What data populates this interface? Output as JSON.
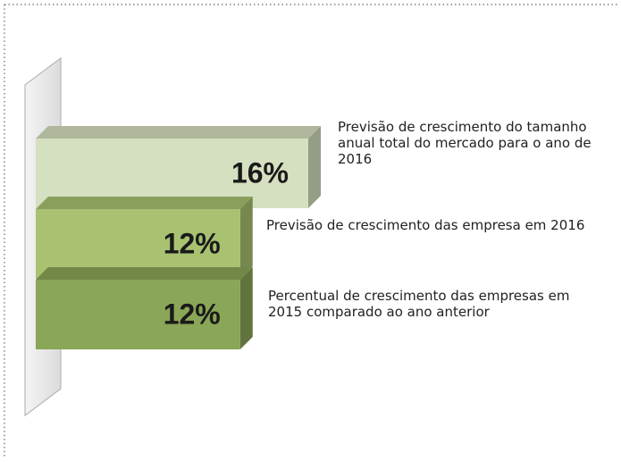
{
  "chart_data": {
    "type": "bar3d",
    "categories": [
      "Previsão de crescimento do tamanho anual total do mercado para o ano de 2016",
      "Previsão de crescimento das empresa em 2016",
      "Percentual de crescimento das empresas em 2015 comparado ao ano anterior"
    ],
    "values": [
      16,
      12,
      12
    ],
    "value_labels": [
      "16%",
      "12%",
      "12%"
    ],
    "colors": [
      "#d5e0c0",
      "#a9c272",
      "#8aa657"
    ]
  }
}
